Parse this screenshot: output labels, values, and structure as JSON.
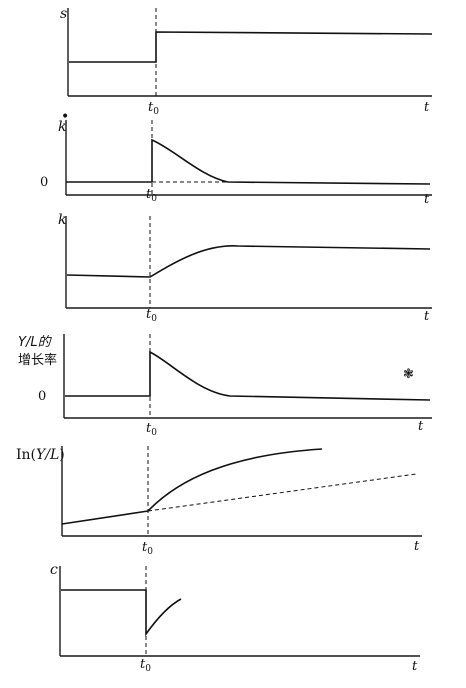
{
  "panels": [
    {
      "id": "s",
      "ylabel": "s",
      "xlabel": "t",
      "tick": "t",
      "tick_sub": "0"
    },
    {
      "id": "kdot",
      "ylabel": "k",
      "ylabel_dot": "•",
      "xlabel": "t",
      "tick": "t",
      "tick_sub": "0",
      "zero": "0"
    },
    {
      "id": "k",
      "ylabel": "k",
      "xlabel": "t",
      "tick": "t",
      "tick_sub": "0"
    },
    {
      "id": "growth",
      "ylabel_line1": "Y/L的",
      "ylabel_line2": "增长率",
      "xlabel": "t",
      "tick": "t",
      "tick_sub": "0",
      "zero": "0"
    },
    {
      "id": "lny",
      "ylabel_prefix": "In(",
      "ylabel_mid": "Y/L",
      "ylabel_suffix": ")",
      "xlabel": "t",
      "tick": "t",
      "tick_sub": "0"
    },
    {
      "id": "c",
      "ylabel": "c",
      "xlabel": "t",
      "tick": "t",
      "tick_sub": "0"
    }
  ],
  "stray_mark": "❃",
  "colors": {
    "ink": "#111111",
    "background": "#ffffff"
  }
}
